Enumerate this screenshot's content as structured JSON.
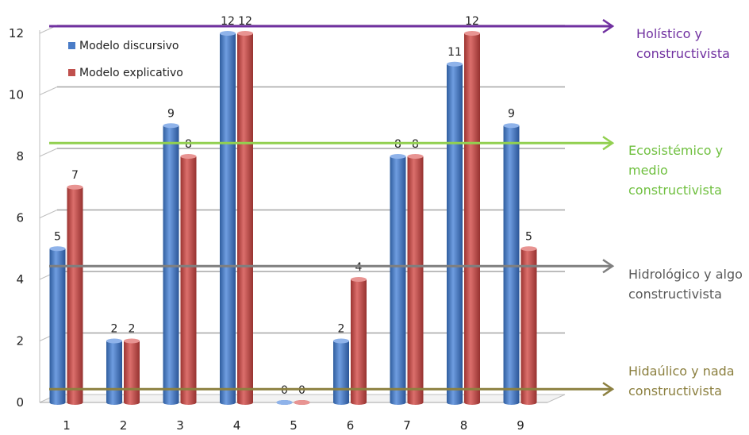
{
  "chart_data": {
    "type": "bar",
    "categories": [
      "1",
      "2",
      "3",
      "4",
      "5",
      "6",
      "7",
      "8",
      "9"
    ],
    "series": [
      {
        "name": "Modelo discursivo",
        "values": [
          5,
          2,
          9,
          12,
          0,
          2,
          8,
          11,
          9
        ],
        "color": "#4a7cc7"
      },
      {
        "name": "Modelo explicativo",
        "values": [
          7,
          2,
          8,
          12,
          0,
          4,
          8,
          12,
          5
        ],
        "color": "#c0504d"
      }
    ],
    "yticks": [
      "0",
      "2",
      "4",
      "6",
      "8",
      "10",
      "12"
    ],
    "ylim": [
      0,
      12
    ],
    "grid": true,
    "legend_position": "top-left",
    "reference_lines": [
      {
        "value": 12.0,
        "color": "#7030a0",
        "text_color": "#7030a0",
        "lines": [
          "Holístico y",
          "constructivista"
        ]
      },
      {
        "value": 8.2,
        "color": "#92d050",
        "text_color": "#70c040",
        "lines": [
          "Ecosistémico y",
          "medio",
          "constructivista"
        ]
      },
      {
        "value": 4.2,
        "color": "#7f7f7f",
        "text_color": "#595959",
        "lines": [
          "Hidrológico y algo",
          "constructivista"
        ]
      },
      {
        "value": 0.2,
        "color": "#8c8040",
        "text_color": "#8c8040",
        "lines": [
          "Hidaúlico y nada",
          "constructivista"
        ]
      }
    ]
  }
}
